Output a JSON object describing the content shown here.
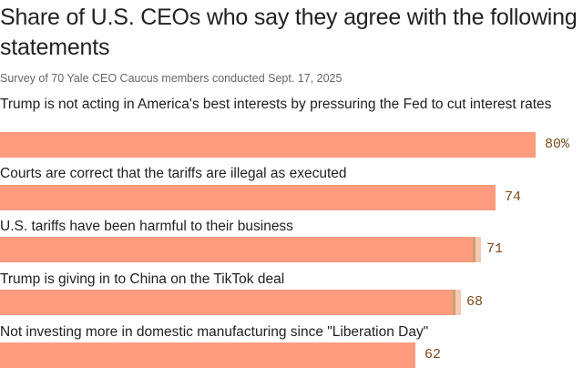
{
  "header": {
    "title": "Share of U.S. CEOs who say they agree with the following statements",
    "subtitle": "Survey of 70 Yale CEO Caucus members conducted Sept. 17, 2025"
  },
  "chart_data": {
    "type": "bar",
    "orientation": "horizontal",
    "title": "Share of U.S. CEOs who say they agree with the following statements",
    "subtitle": "Survey of 70 Yale CEO Caucus members conducted Sept. 17, 2025",
    "categories": [
      "Trump is not acting in America's best interests by pressuring the Fed to cut interest rates",
      "Courts are correct that the tariffs are illegal as executed",
      "U.S. tariffs have been harmful to their business",
      "Trump is giving in to China on the TikTok deal",
      "Not investing more in domestic manufacturing since \"Liberation Day\""
    ],
    "values": [
      80,
      74,
      71,
      68,
      62
    ],
    "value_labels": [
      "80%",
      "74",
      "71",
      "68",
      "62"
    ],
    "unit": "%",
    "xlim": [
      0,
      100
    ],
    "bar_color": "#ff9b7e",
    "shade_color": "#f3c9b5",
    "edge_color": "#c9a46a",
    "xlabel": "",
    "ylabel": ""
  }
}
